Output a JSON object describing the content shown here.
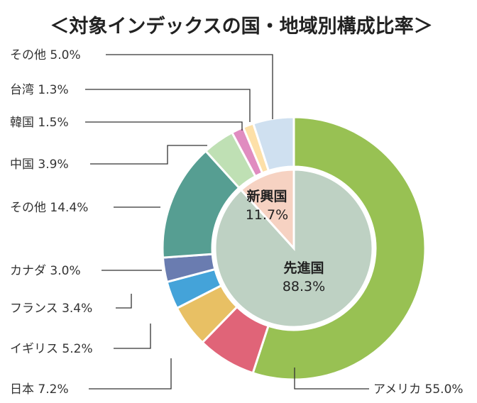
{
  "chart_data": {
    "type": "pie",
    "title": "＜対象インデックスの国・地域別構成比率＞",
    "unit": "%",
    "outer_ring": [
      {
        "label": "アメリカ",
        "value": 55.0,
        "display": "アメリカ 55.0%",
        "color": "#98c153"
      },
      {
        "label": "日本",
        "value": 7.2,
        "display": "日本 7.2%",
        "color": "#e06478"
      },
      {
        "label": "イギリス",
        "value": 5.2,
        "display": "イギリス 5.2%",
        "color": "#e8c064"
      },
      {
        "label": "フランス",
        "value": 3.4,
        "display": "フランス 3.4%",
        "color": "#44a3d9"
      },
      {
        "label": "カナダ",
        "value": 3.0,
        "display": "カナダ 3.0%",
        "color": "#6a7cb0"
      },
      {
        "label": "その他",
        "value": 14.4,
        "display": "その他 14.4%",
        "color": "#569e92"
      },
      {
        "label": "中国",
        "value": 3.9,
        "display": "中国 3.9%",
        "color": "#bfe0b4"
      },
      {
        "label": "韓国",
        "value": 1.5,
        "display": "韓国 1.5%",
        "color": "#e08cc0"
      },
      {
        "label": "台湾",
        "value": 1.3,
        "display": "台湾 1.3%",
        "color": "#fde0a8"
      },
      {
        "label": "その他",
        "value": 5.0,
        "display": "その他 5.0%",
        "color": "#cfe0f0"
      }
    ],
    "inner_pie": [
      {
        "label": "先進国",
        "value": 88.3,
        "display": "88.3%",
        "color": "#bed1c3"
      },
      {
        "label": "新興国",
        "value": 11.7,
        "display": "11.7%",
        "color": "#f6d2c2"
      }
    ]
  }
}
